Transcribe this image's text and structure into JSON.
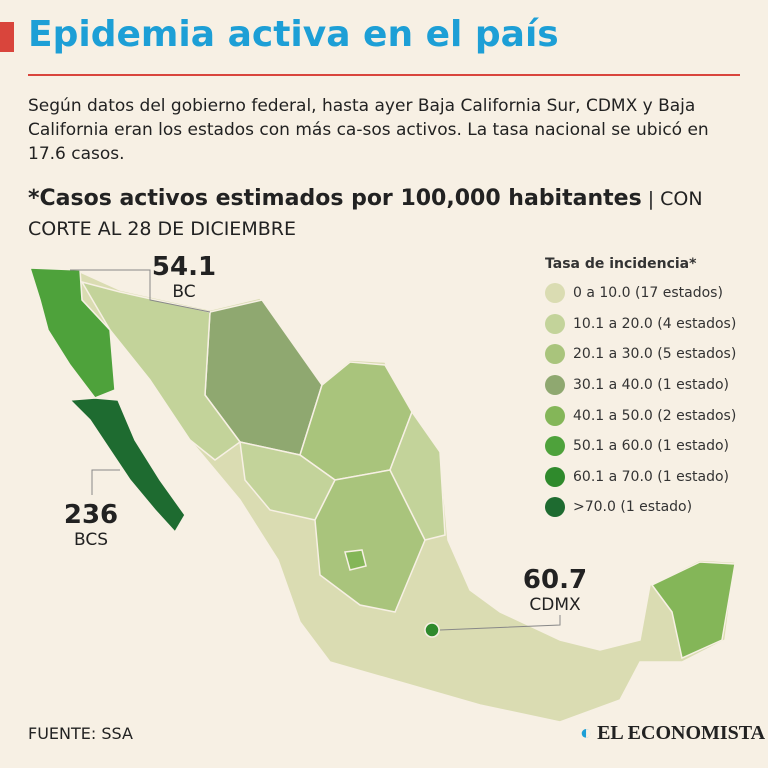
{
  "header": {
    "title": "Epidemia activa en el país"
  },
  "intro": "Según datos del gobierno federal, hasta ayer Baja California Sur, CDMX y Baja California eran los estados con más ca-sos activos. La tasa nacional se ubicó en 17.6 casos.",
  "subtitle": {
    "main": "*Casos activos estimados por 100,000 habitantes",
    "note": "| CON CORTE AL 28 DE DICIEMBRE"
  },
  "legend": {
    "title": "Tasa de incidencia*",
    "items": [
      {
        "label": "0 a 10.0 (17 estados)",
        "color": "#dadcb2"
      },
      {
        "label": "10.1 a 20.0 (4 estados)",
        "color": "#c3d39a"
      },
      {
        "label": "20.1 a 30.0 (5 estados)",
        "color": "#a9c47c"
      },
      {
        "label": "30.1 a 40.0 (1 estado)",
        "color": "#8fa870"
      },
      {
        "label": "40.1 a 50.0 (2 estados)",
        "color": "#84b658"
      },
      {
        "label": "50.1 a 60.0 (1 estado)",
        "color": "#4ea23b"
      },
      {
        "label": "60.1 a 70.0 (1 estado)",
        "color": "#2f8a2c"
      },
      {
        "label": ">70.0 (1 estado)",
        "color": "#1e6b30"
      }
    ]
  },
  "callouts": [
    {
      "value": 54.1,
      "label": "BC"
    },
    {
      "value": 236,
      "label": "BCS"
    },
    {
      "value": 60.7,
      "label": "CDMX"
    }
  ],
  "source": "FUENTE: SSA",
  "brand": "EL ECONOMISTA"
}
